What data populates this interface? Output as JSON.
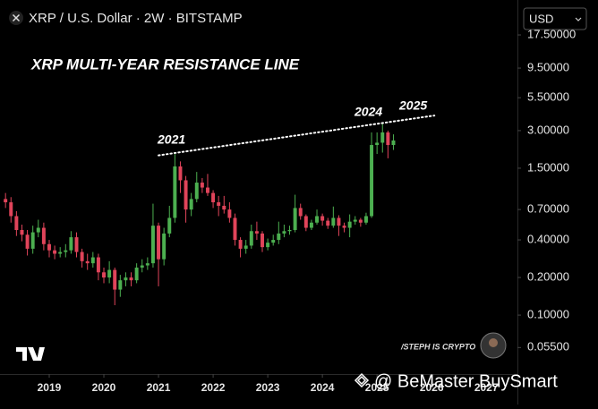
{
  "header": {
    "title": "XRP / U.S. Dollar · 2W · BITSTAMP",
    "currency": "USD"
  },
  "chart_data": {
    "type": "candlestick",
    "title": "XRP MULTI-YEAR RESISTANCE LINE",
    "annotations": [
      "2021",
      "2024",
      "2025"
    ],
    "credit": "/STEPH IS CRYPTO",
    "log_scale": true,
    "up_color": "#4caf50",
    "down_color": "#e0445a",
    "xlim": [
      2018.23,
      2027.57
    ],
    "xticks": [
      2019,
      2020,
      2021,
      2022,
      2023,
      2024,
      2025,
      2026,
      2027
    ],
    "ylim": [
      0.0337,
      29.2
    ],
    "yticks": [
      {
        "value": 17.5,
        "label": "17.50000"
      },
      {
        "value": 9.5,
        "label": "9.50000"
      },
      {
        "value": 5.5,
        "label": "5.50000"
      },
      {
        "value": 3,
        "label": "3.00000"
      },
      {
        "value": 1.5,
        "label": "1.50000"
      },
      {
        "value": 0.7,
        "label": "0.70000"
      },
      {
        "value": 0.4,
        "label": "0.40000"
      },
      {
        "value": 0.2,
        "label": "0.20000"
      },
      {
        "value": 0.1,
        "label": "0.10000"
      },
      {
        "value": 0.055,
        "label": "0.05500"
      }
    ],
    "x": [
      2018.2,
      2018.3,
      2018.4,
      2018.5,
      2018.6,
      2018.7,
      2018.8,
      2018.9,
      2019.0,
      2019.1,
      2019.2,
      2019.3,
      2019.4,
      2019.5,
      2019.6,
      2019.7,
      2019.8,
      2019.9,
      2020.0,
      2020.1,
      2020.2,
      2020.3,
      2020.4,
      2020.5,
      2020.6,
      2020.7,
      2020.8,
      2020.9,
      2021.0,
      2021.1,
      2021.2,
      2021.3,
      2021.4,
      2021.5,
      2021.6,
      2021.7,
      2021.8,
      2021.9,
      2022.0,
      2022.1,
      2022.2,
      2022.3,
      2022.4,
      2022.5,
      2022.6,
      2022.7,
      2022.8,
      2022.9,
      2023.0,
      2023.1,
      2023.2,
      2023.3,
      2023.4,
      2023.5,
      2023.6,
      2023.7,
      2023.8,
      2023.9,
      2024.0,
      2024.1,
      2024.2,
      2024.3,
      2024.4,
      2024.5,
      2024.6,
      2024.7,
      2024.8,
      2024.9,
      2025.0,
      2025.1,
      2025.2,
      2025.3
    ],
    "open": [
      0.85,
      0.8,
      0.62,
      0.48,
      0.44,
      0.34,
      0.46,
      0.5,
      0.37,
      0.33,
      0.31,
      0.32,
      0.33,
      0.42,
      0.32,
      0.27,
      0.26,
      0.29,
      0.22,
      0.2,
      0.23,
      0.16,
      0.19,
      0.2,
      0.19,
      0.24,
      0.25,
      0.26,
      0.52,
      0.28,
      0.45,
      0.6,
      1.55,
      1.2,
      0.7,
      0.85,
      1.15,
      1.05,
      0.95,
      0.8,
      0.75,
      0.7,
      0.6,
      0.4,
      0.34,
      0.36,
      0.47,
      0.45,
      0.35,
      0.38,
      0.4,
      0.45,
      0.47,
      0.48,
      0.72,
      0.62,
      0.5,
      0.55,
      0.62,
      0.57,
      0.52,
      0.6,
      0.52,
      0.5,
      0.56,
      0.58,
      0.55,
      0.62,
      2.3,
      2.4,
      2.9,
      2.3
    ],
    "high": [
      0.95,
      0.88,
      0.68,
      0.53,
      0.48,
      0.52,
      0.58,
      0.55,
      0.4,
      0.36,
      0.35,
      0.37,
      0.47,
      0.46,
      0.34,
      0.31,
      0.32,
      0.31,
      0.24,
      0.27,
      0.24,
      0.21,
      0.22,
      0.22,
      0.26,
      0.28,
      0.29,
      0.78,
      0.55,
      0.5,
      0.75,
      1.95,
      1.7,
      1.3,
      0.95,
      1.4,
      1.25,
      1.35,
      1.0,
      0.9,
      0.9,
      0.8,
      0.65,
      0.42,
      0.4,
      0.53,
      0.56,
      0.47,
      0.41,
      0.44,
      0.56,
      0.53,
      0.52,
      0.92,
      0.78,
      0.64,
      0.58,
      0.7,
      0.65,
      0.6,
      0.74,
      0.63,
      0.55,
      0.64,
      0.62,
      0.6,
      0.66,
      2.9,
      2.9,
      3.4,
      3.0,
      2.8
    ],
    "low": [
      0.72,
      0.55,
      0.43,
      0.39,
      0.3,
      0.31,
      0.42,
      0.33,
      0.29,
      0.28,
      0.29,
      0.29,
      0.31,
      0.29,
      0.24,
      0.23,
      0.24,
      0.19,
      0.18,
      0.18,
      0.12,
      0.14,
      0.17,
      0.17,
      0.18,
      0.22,
      0.23,
      0.24,
      0.17,
      0.25,
      0.42,
      0.55,
      0.95,
      0.55,
      0.62,
      0.8,
      0.95,
      0.9,
      0.72,
      0.62,
      0.65,
      0.55,
      0.36,
      0.29,
      0.31,
      0.34,
      0.4,
      0.32,
      0.33,
      0.36,
      0.37,
      0.42,
      0.44,
      0.46,
      0.58,
      0.47,
      0.48,
      0.53,
      0.52,
      0.49,
      0.5,
      0.43,
      0.46,
      0.42,
      0.53,
      0.51,
      0.53,
      0.6,
      1.95,
      2.0,
      1.8,
      2.1
    ],
    "close": [
      0.8,
      0.62,
      0.48,
      0.44,
      0.34,
      0.46,
      0.5,
      0.37,
      0.33,
      0.31,
      0.32,
      0.33,
      0.42,
      0.32,
      0.27,
      0.26,
      0.29,
      0.22,
      0.2,
      0.23,
      0.16,
      0.19,
      0.2,
      0.19,
      0.24,
      0.25,
      0.26,
      0.52,
      0.28,
      0.45,
      0.6,
      1.55,
      1.2,
      0.7,
      0.85,
      1.15,
      1.05,
      0.95,
      0.8,
      0.75,
      0.7,
      0.6,
      0.4,
      0.34,
      0.36,
      0.47,
      0.45,
      0.35,
      0.38,
      0.4,
      0.45,
      0.47,
      0.48,
      0.72,
      0.62,
      0.5,
      0.55,
      0.62,
      0.57,
      0.52,
      0.6,
      0.52,
      0.5,
      0.56,
      0.58,
      0.55,
      0.62,
      2.3,
      2.4,
      2.9,
      2.3,
      2.5
    ],
    "resistance_line": {
      "x": [
        2021.0,
        2026.05
      ],
      "values": [
        1.9,
        3.96
      ]
    }
  },
  "watermark": "@ BeMaster BuySmart"
}
